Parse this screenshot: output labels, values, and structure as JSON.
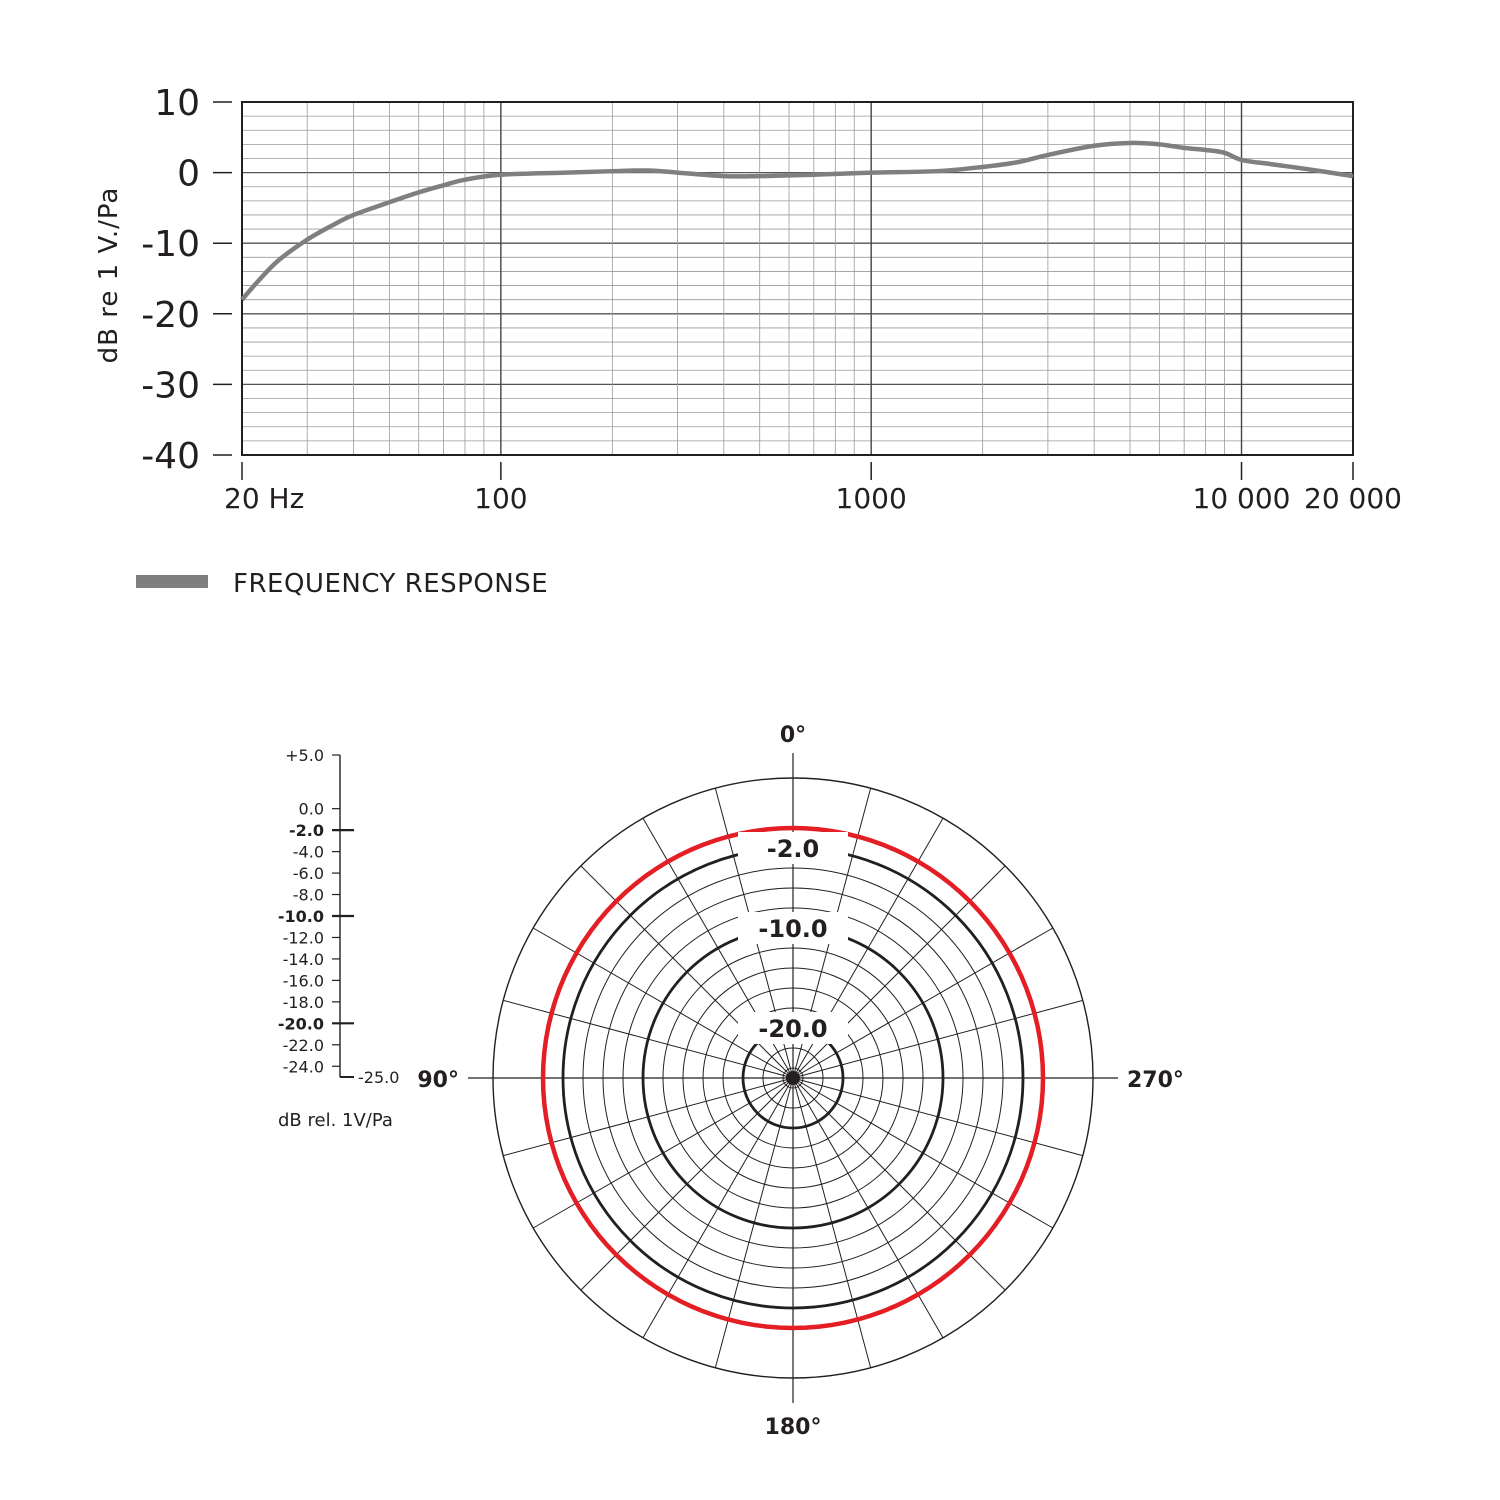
{
  "chart_data": [
    {
      "type": "line",
      "title": "",
      "xlabel": "",
      "ylabel": "dB re 1 V./Pa",
      "x_scale": "log",
      "xlim": [
        20,
        20000
      ],
      "ylim": [
        -40,
        10
      ],
      "grid": true,
      "y_ticks": [
        {
          "value": 10,
          "label": "10"
        },
        {
          "value": 0,
          "label": "0"
        },
        {
          "value": -10,
          "label": "-10"
        },
        {
          "value": -20,
          "label": "-20"
        },
        {
          "value": -30,
          "label": "-30"
        },
        {
          "value": -40,
          "label": "-40"
        }
      ],
      "x_ticks": [
        {
          "value": 20,
          "label": "20 Hz"
        },
        {
          "value": 100,
          "label": "100"
        },
        {
          "value": 1000,
          "label": "1000"
        },
        {
          "value": 10000,
          "label": "10 000"
        },
        {
          "value": 20000,
          "label": "20 000"
        }
      ],
      "legend_position": "bottom-left",
      "series": [
        {
          "name": "FREQUENCY RESPONSE",
          "color": "#7f7f7f",
          "x": [
            20,
            22,
            25,
            30,
            35,
            40,
            50,
            60,
            70,
            80,
            100,
            150,
            200,
            250,
            300,
            400,
            500,
            700,
            1000,
            1500,
            2000,
            2500,
            3000,
            4000,
            5000,
            6000,
            7000,
            8000,
            9000,
            10000,
            12000,
            15000,
            20000
          ],
          "y": [
            -18,
            -15.5,
            -12.5,
            -9.5,
            -7.5,
            -6,
            -4.2,
            -2.8,
            -1.8,
            -1.0,
            -0.3,
            0,
            0.2,
            0.3,
            0,
            -0.5,
            -0.5,
            -0.3,
            0,
            0.2,
            0.8,
            1.5,
            2.5,
            3.8,
            4.2,
            4.0,
            3.5,
            3.2,
            2.8,
            1.8,
            1.2,
            0.5,
            -0.5
          ]
        }
      ]
    },
    {
      "type": "polar",
      "title": "",
      "r_unit_label": "dB rel. 1V/Pa",
      "r_range": [
        -25,
        5
      ],
      "scale_ticks": [
        {
          "value": 5,
          "label": "+5.0",
          "bold": false
        },
        {
          "value": 0,
          "label": "0.0",
          "bold": false
        },
        {
          "value": -2,
          "label": "-2.0",
          "bold": true
        },
        {
          "value": -4,
          "label": "-4.0",
          "bold": false
        },
        {
          "value": -6,
          "label": "-6.0",
          "bold": false
        },
        {
          "value": -8,
          "label": "-8.0",
          "bold": false
        },
        {
          "value": -10,
          "label": "-10.0",
          "bold": true
        },
        {
          "value": -12,
          "label": "-12.0",
          "bold": false
        },
        {
          "value": -14,
          "label": "-14.0",
          "bold": false
        },
        {
          "value": -16,
          "label": "-16.0",
          "bold": false
        },
        {
          "value": -18,
          "label": "-18.0",
          "bold": false
        },
        {
          "value": -20,
          "label": "-20.0",
          "bold": true
        },
        {
          "value": -22,
          "label": "-22.0",
          "bold": false
        },
        {
          "value": -24,
          "label": "-24.0",
          "bold": false
        }
      ],
      "scale_min_label": "-25.0",
      "ring_labels": [
        {
          "value": -2,
          "label": "-2.0"
        },
        {
          "value": -10,
          "label": "-10.0"
        },
        {
          "value": -20,
          "label": "-20.0"
        }
      ],
      "angle_labels": [
        {
          "angle": 0,
          "label": "0°"
        },
        {
          "angle": 90,
          "label": "90°"
        },
        {
          "angle": 180,
          "label": "180°"
        },
        {
          "angle": 270,
          "label": "270°"
        }
      ],
      "series": [
        {
          "color": "#e31e24",
          "angles": [
            0,
            30,
            60,
            90,
            120,
            150,
            180,
            210,
            240,
            270,
            300,
            330
          ],
          "values": [
            0,
            0,
            0,
            0,
            0,
            0,
            0,
            0,
            0,
            0,
            0,
            0
          ]
        }
      ]
    }
  ]
}
